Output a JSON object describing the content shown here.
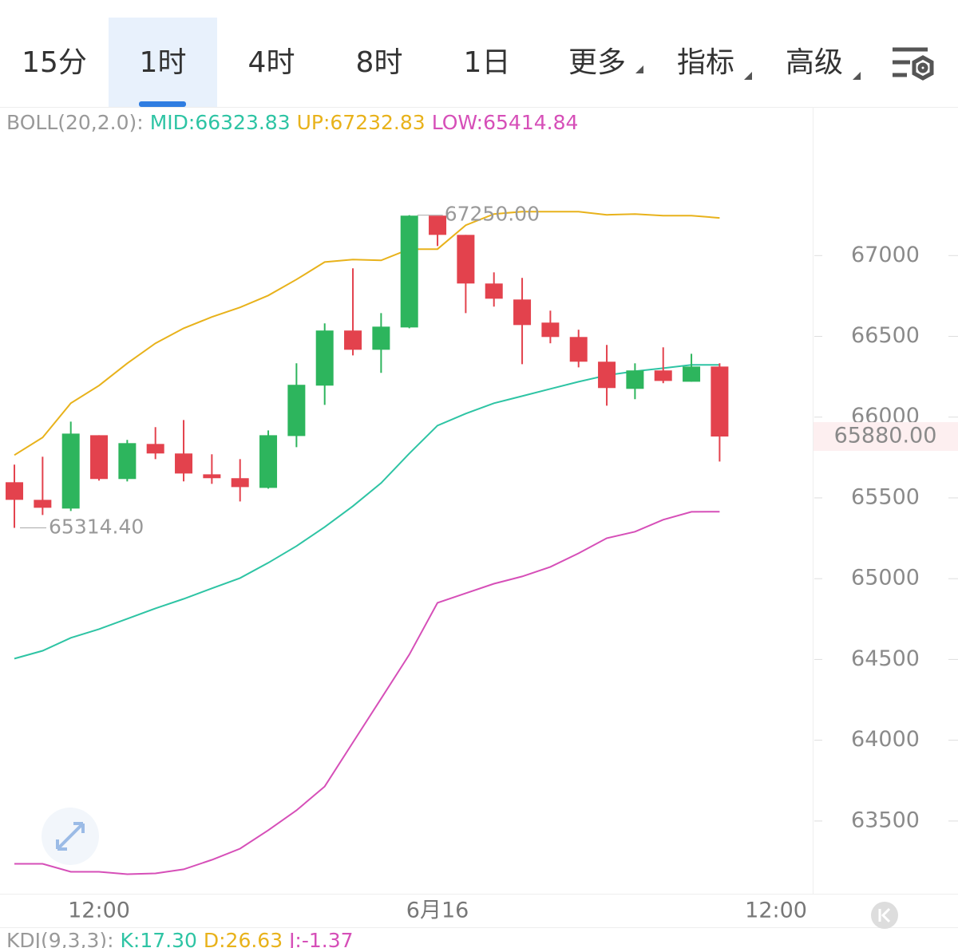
{
  "tabs": [
    "15分",
    "1时",
    "4时",
    "8时",
    "1日",
    "更多",
    "指标",
    "高级"
  ],
  "selected_tab": 1,
  "chart_data": {
    "type": "candlestick",
    "indicator": "BOLL(20,2.0):",
    "open": [
      65597,
      65488,
      65434,
      65888,
      65617,
      65834,
      65775,
      65646,
      65622,
      65562,
      65883,
      66195,
      66536,
      66417,
      66555,
      67247,
      67128,
      66827,
      66728,
      66585,
      66496,
      66343,
      66175,
      66289,
      66219,
      66313
    ],
    "high": [
      65706,
      65755,
      65972,
      65888,
      65859,
      65938,
      65982,
      65770,
      65740,
      65918,
      66333,
      66580,
      66921,
      66644,
      67250,
      67240,
      67128,
      66896,
      66862,
      66659,
      66541,
      66447,
      66333,
      66432,
      66392,
      66333
    ],
    "low": [
      65314.4,
      65394,
      65419,
      65607,
      65602,
      65740,
      65602,
      65587,
      65478,
      65557,
      65814,
      66076,
      66382,
      66274,
      66550,
      67059,
      66644,
      66684,
      66328,
      66457,
      66308,
      66071,
      66111,
      66210,
      66219,
      65725
    ],
    "close": [
      65488,
      65439,
      65898,
      65617,
      65839,
      65775,
      65651,
      65622,
      65567,
      65888,
      66200,
      66536,
      66417,
      66560,
      67247,
      67128,
      66827,
      66733,
      66570,
      66496,
      66343,
      66180,
      66289,
      66224,
      66313,
      65880
    ],
    "up_color": "#2db55d",
    "down_color": "#e3424d",
    "series": [
      {
        "name": "MID",
        "label": "MID:66323.83",
        "color": "#2ec4a4",
        "values": [
          64505,
          64554,
          64634,
          64688,
          64752,
          64816,
          64875,
          64940,
          65004,
          65098,
          65202,
          65320,
          65449,
          65592,
          65775,
          65948,
          66022,
          66086,
          66130,
          66175,
          66219,
          66259,
          66284,
          66303,
          66323,
          66323.83
        ]
      },
      {
        "name": "UP",
        "label": "UP:67232.83",
        "color": "#e8b21b",
        "values": [
          65765,
          65874,
          66086,
          66195,
          66333,
          66457,
          66550,
          66620,
          66679,
          66753,
          66852,
          66960,
          66975,
          66970,
          67040,
          67040,
          67188,
          67257,
          67272,
          67272,
          67272,
          67252,
          67257,
          67247,
          67247,
          67232.83
        ]
      },
      {
        "name": "LOW",
        "label": "LOW:65414.84",
        "color": "#d64fb8",
        "values": [
          63235,
          63235,
          63186,
          63186,
          63171,
          63176,
          63201,
          63260,
          63329,
          63443,
          63566,
          63714,
          63986,
          64258,
          64530,
          64851,
          64910,
          64969,
          65014,
          65073,
          65157,
          65251,
          65291,
          65365,
          65414,
          65414.84
        ]
      }
    ],
    "high_mark": {
      "value": 67250,
      "label": "67250.00"
    },
    "low_mark": {
      "value": 65314.4,
      "label": "65314.40"
    },
    "last_price": {
      "value": 65880,
      "label": "65880.00"
    },
    "ylim": [
      63050,
      67915
    ],
    "yticks": [
      63500,
      64000,
      64500,
      65000,
      65500,
      66000,
      66500,
      67000
    ],
    "xlim": [
      -0.51,
      28.3
    ],
    "xticks": [
      {
        "value": 3,
        "label": "12:00"
      },
      {
        "value": 15,
        "label": "6月16"
      },
      {
        "value": 27,
        "label": "12:00"
      }
    ]
  },
  "kdj": {
    "name": "KDJ(9,3,3):",
    "k": "K:17.30",
    "d": "D:26.63",
    "j": "J:-1.37"
  }
}
